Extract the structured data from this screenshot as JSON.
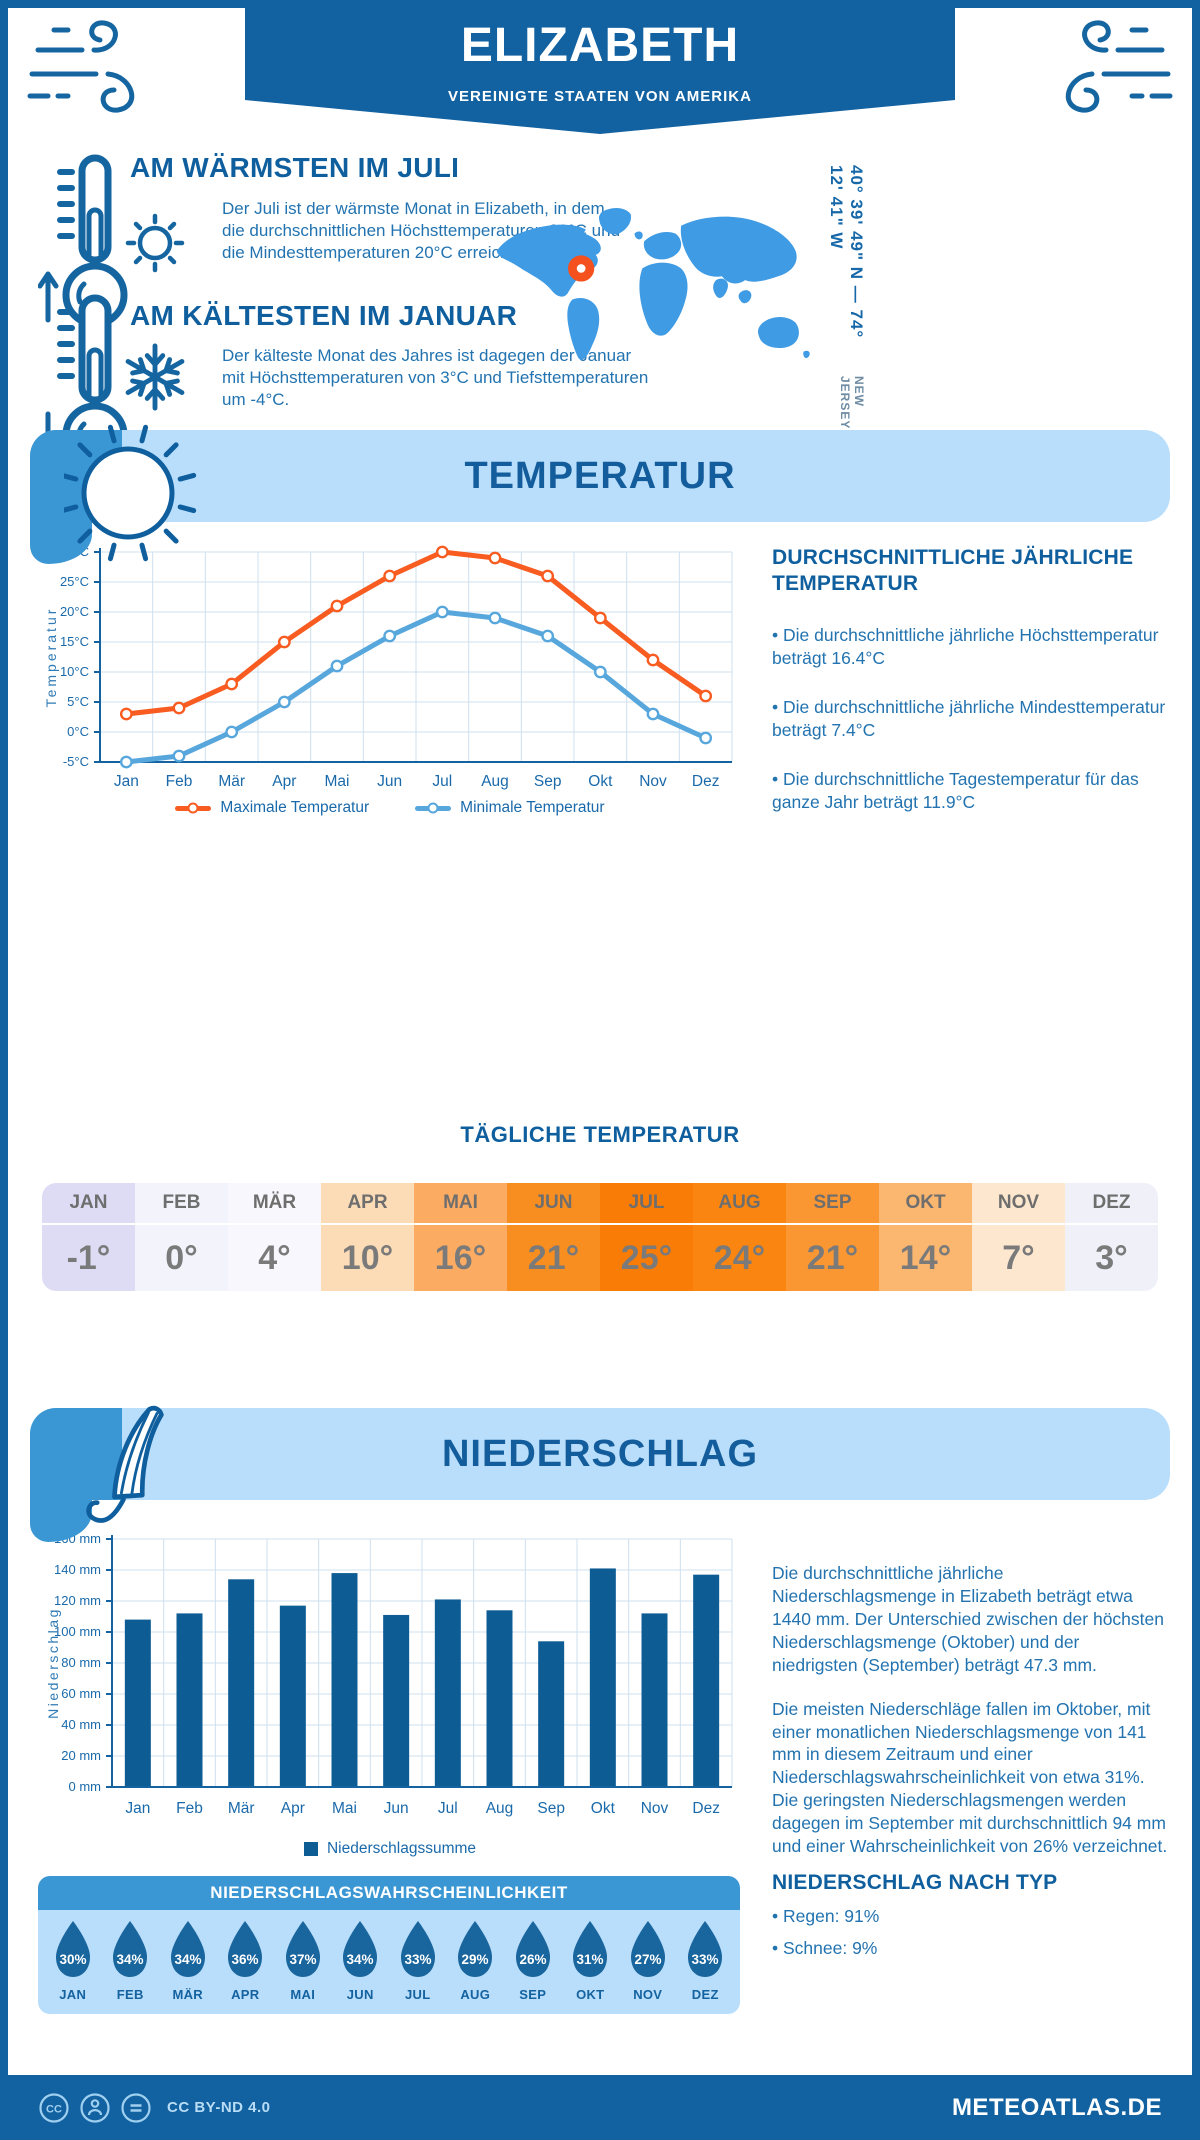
{
  "header": {
    "title": "ELIZABETH",
    "subtitle": "VEREINIGTE STAATEN VON AMERIKA"
  },
  "intro": {
    "warm": {
      "title": "AM WÄRMSTEN IM JULI",
      "text": "Der Juli ist der wärmste Monat in Elizabeth, in dem die durchschnittlichen Höchsttemperaturen 30°C und die Mindesttemperaturen 20°C erreichen."
    },
    "cold": {
      "title": "AM KÄLTESTEN IM JANUAR",
      "text": "Der kälteste Monat des Jahres ist dagegen der Januar mit Höchsttemperaturen von 3°C und Tiefsttemperaturen um -4°C."
    },
    "location": {
      "coordinates": "40° 39' 49\" N — 74° 12' 41\" W",
      "region": "NEW JERSEY"
    }
  },
  "temperature_section": {
    "title": "TEMPERATUR",
    "annual": {
      "heading": "DURCHSCHNITTLICHE JÄHRLICHE TEMPERATUR",
      "bullets": [
        "Die durchschnittliche jährliche Höchsttemperatur beträgt 16.4°C",
        "Die durchschnittliche jährliche Mindesttemperatur beträgt 7.4°C",
        "Die durchschnittliche Tagestemperatur für das ganze Jahr beträgt 11.9°C"
      ]
    },
    "daily": {
      "heading": "TÄGLICHE TEMPERATUR",
      "months": [
        "JAN",
        "FEB",
        "MÄR",
        "APR",
        "MAI",
        "JUN",
        "JUL",
        "AUG",
        "SEP",
        "OKT",
        "NOV",
        "DEZ"
      ],
      "values": [
        "-1°",
        "0°",
        "4°",
        "10°",
        "16°",
        "21°",
        "25°",
        "24°",
        "21°",
        "14°",
        "7°",
        "3°"
      ],
      "cell_colors": [
        "#dedcf5",
        "#f3f3fb",
        "#f7f7fd",
        "#fcdcb6",
        "#fbab62",
        "#f98e20",
        "#f97c06",
        "#fa8611",
        "#fa9733",
        "#fbb66f",
        "#fde8cf",
        "#f0f0f9"
      ]
    }
  },
  "precipitation_section": {
    "title": "NIEDERSCHLAG",
    "paragraphs": [
      "Die durchschnittliche jährliche Niederschlagsmenge in Elizabeth beträgt etwa 1440 mm. Der Unterschied zwischen der höchsten Niederschlagsmenge (Oktober) und der niedrigsten (September) beträgt 47.3 mm.",
      "Die meisten Niederschläge fallen im Oktober, mit einer monatlichen Niederschlagsmenge von 141 mm in diesem Zeitraum und einer Niederschlagswahrscheinlichkeit von etwa 31%. Die geringsten Niederschlagsmengen werden dagegen im September mit durchschnittlich 94 mm und einer Wahrscheinlichkeit von 26% verzeichnet."
    ],
    "type_heading": "NIEDERSCHLAG NACH TYP",
    "type_bullets": [
      "Regen: 91%",
      "Schnee: 9%"
    ],
    "probability": {
      "heading": "NIEDERSCHLAGSWAHRSCHEINLICHKEIT",
      "months": [
        "JAN",
        "FEB",
        "MÄR",
        "APR",
        "MAI",
        "JUN",
        "JUL",
        "AUG",
        "SEP",
        "OKT",
        "NOV",
        "DEZ"
      ],
      "values": [
        "30%",
        "34%",
        "34%",
        "36%",
        "37%",
        "34%",
        "33%",
        "29%",
        "26%",
        "31%",
        "27%",
        "33%"
      ]
    }
  },
  "footer": {
    "license": "CC BY-ND 4.0",
    "site": "METEOATLAS.DE"
  },
  "colors": {
    "primary": "#1261a0",
    "section_banner": "#b9defb",
    "section_tab": "#3a97d3",
    "map_fill": "#3f9be4",
    "location_marker": "#f4511e",
    "droplet": "#19659d"
  },
  "chart_data": [
    {
      "type": "line",
      "categories": [
        "Jan",
        "Feb",
        "Mär",
        "Apr",
        "Mai",
        "Jun",
        "Jul",
        "Aug",
        "Sep",
        "Okt",
        "Nov",
        "Dez"
      ],
      "series": [
        {
          "name": "Maximale Temperatur",
          "color": "#f85c20",
          "values": [
            3,
            4,
            8,
            15,
            21,
            26,
            30,
            29,
            26,
            19,
            12,
            6
          ]
        },
        {
          "name": "Minimale Temperatur",
          "color": "#57a7dd",
          "values": [
            -5,
            -4,
            0,
            5,
            11,
            16,
            20,
            19,
            16,
            10,
            3,
            -1
          ]
        }
      ],
      "ylabel": "Temperatur",
      "ylim": [
        -5,
        30
      ],
      "ytick_step": 5,
      "ytick_suffix": "°C",
      "grid": true,
      "legend_position": "bottom"
    },
    {
      "type": "bar",
      "categories": [
        "Jan",
        "Feb",
        "Mär",
        "Apr",
        "Mai",
        "Jun",
        "Jul",
        "Aug",
        "Sep",
        "Okt",
        "Nov",
        "Dez"
      ],
      "series": [
        {
          "name": "Niederschlagssumme",
          "color": "#0d5c94",
          "values": [
            108,
            112,
            134,
            117,
            138,
            111,
            121,
            114,
            94,
            141,
            112,
            137
          ]
        }
      ],
      "ylabel": "Niederschlag",
      "ylim": [
        0,
        160
      ],
      "ytick_step": 20,
      "ytick_suffix": " mm",
      "grid": true,
      "legend_position": "bottom"
    }
  ]
}
